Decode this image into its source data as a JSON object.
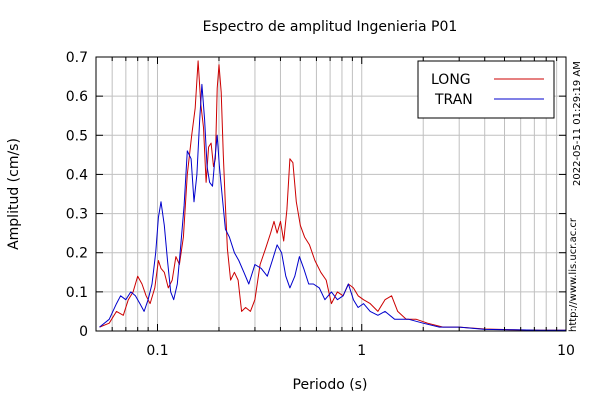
{
  "chart_data": {
    "type": "line",
    "title": "Espectro de amplitud Ingenieria P01",
    "xlabel": "Periodo (s)",
    "ylabel": "Amplitud (cm/s)",
    "xscale": "log",
    "xlim": [
      0.05,
      10
    ],
    "ylim": [
      0,
      0.7
    ],
    "x_ticks": [
      {
        "value": 0.1,
        "label": "0.1"
      },
      {
        "value": 1,
        "label": "1"
      },
      {
        "value": 10,
        "label": "10"
      }
    ],
    "y_ticks": [
      {
        "value": 0,
        "label": "0"
      },
      {
        "value": 0.1,
        "label": "0.1"
      },
      {
        "value": 0.2,
        "label": "0.2"
      },
      {
        "value": 0.3,
        "label": "0.3"
      },
      {
        "value": 0.4,
        "label": "0.4"
      },
      {
        "value": 0.5,
        "label": "0.5"
      },
      {
        "value": 0.6,
        "label": "0.6"
      },
      {
        "value": 0.7,
        "label": "0.7"
      }
    ],
    "grid": true,
    "legend_position": "top-right",
    "series": [
      {
        "name": "LONG",
        "color": "#cc0000",
        "points": [
          [
            0.052,
            0.01
          ],
          [
            0.058,
            0.02
          ],
          [
            0.063,
            0.05
          ],
          [
            0.068,
            0.04
          ],
          [
            0.072,
            0.08
          ],
          [
            0.076,
            0.1
          ],
          [
            0.08,
            0.14
          ],
          [
            0.084,
            0.12
          ],
          [
            0.088,
            0.09
          ],
          [
            0.092,
            0.07
          ],
          [
            0.097,
            0.11
          ],
          [
            0.101,
            0.18
          ],
          [
            0.104,
            0.16
          ],
          [
            0.108,
            0.15
          ],
          [
            0.113,
            0.11
          ],
          [
            0.118,
            0.13
          ],
          [
            0.123,
            0.19
          ],
          [
            0.128,
            0.17
          ],
          [
            0.134,
            0.24
          ],
          [
            0.14,
            0.4
          ],
          [
            0.147,
            0.5
          ],
          [
            0.153,
            0.57
          ],
          [
            0.158,
            0.69
          ],
          [
            0.163,
            0.58
          ],
          [
            0.168,
            0.52
          ],
          [
            0.173,
            0.38
          ],
          [
            0.178,
            0.47
          ],
          [
            0.183,
            0.48
          ],
          [
            0.188,
            0.42
          ],
          [
            0.192,
            0.44
          ],
          [
            0.196,
            0.62
          ],
          [
            0.2,
            0.68
          ],
          [
            0.205,
            0.61
          ],
          [
            0.21,
            0.45
          ],
          [
            0.215,
            0.32
          ],
          [
            0.22,
            0.21
          ],
          [
            0.228,
            0.13
          ],
          [
            0.238,
            0.15
          ],
          [
            0.248,
            0.13
          ],
          [
            0.258,
            0.05
          ],
          [
            0.27,
            0.06
          ],
          [
            0.285,
            0.05
          ],
          [
            0.3,
            0.08
          ],
          [
            0.318,
            0.17
          ],
          [
            0.338,
            0.21
          ],
          [
            0.358,
            0.25
          ],
          [
            0.372,
            0.28
          ],
          [
            0.385,
            0.25
          ],
          [
            0.4,
            0.28
          ],
          [
            0.415,
            0.23
          ],
          [
            0.43,
            0.31
          ],
          [
            0.445,
            0.44
          ],
          [
            0.46,
            0.43
          ],
          [
            0.478,
            0.33
          ],
          [
            0.5,
            0.27
          ],
          [
            0.525,
            0.24
          ],
          [
            0.555,
            0.22
          ],
          [
            0.59,
            0.18
          ],
          [
            0.63,
            0.15
          ],
          [
            0.67,
            0.13
          ],
          [
            0.71,
            0.07
          ],
          [
            0.76,
            0.1
          ],
          [
            0.81,
            0.09
          ],
          [
            0.86,
            0.12
          ],
          [
            0.91,
            0.11
          ],
          [
            0.96,
            0.09
          ],
          [
            1.02,
            0.08
          ],
          [
            1.1,
            0.07
          ],
          [
            1.2,
            0.05
          ],
          [
            1.3,
            0.08
          ],
          [
            1.4,
            0.09
          ],
          [
            1.5,
            0.05
          ],
          [
            1.65,
            0.03
          ],
          [
            1.85,
            0.03
          ],
          [
            2.1,
            0.02
          ],
          [
            2.5,
            0.01
          ],
          [
            3.0,
            0.01
          ],
          [
            4.0,
            0.005
          ],
          [
            5.5,
            0.003
          ],
          [
            7.5,
            0.002
          ],
          [
            10.0,
            0.002
          ]
        ]
      },
      {
        "name": "TRAN",
        "color": "#0000cc",
        "points": [
          [
            0.052,
            0.01
          ],
          [
            0.058,
            0.03
          ],
          [
            0.063,
            0.07
          ],
          [
            0.066,
            0.09
          ],
          [
            0.07,
            0.08
          ],
          [
            0.074,
            0.1
          ],
          [
            0.078,
            0.09
          ],
          [
            0.082,
            0.07
          ],
          [
            0.086,
            0.05
          ],
          [
            0.09,
            0.08
          ],
          [
            0.094,
            0.12
          ],
          [
            0.098,
            0.2
          ],
          [
            0.101,
            0.29
          ],
          [
            0.104,
            0.33
          ],
          [
            0.108,
            0.27
          ],
          [
            0.112,
            0.18
          ],
          [
            0.116,
            0.1
          ],
          [
            0.12,
            0.08
          ],
          [
            0.125,
            0.12
          ],
          [
            0.13,
            0.22
          ],
          [
            0.135,
            0.32
          ],
          [
            0.14,
            0.46
          ],
          [
            0.146,
            0.44
          ],
          [
            0.151,
            0.33
          ],
          [
            0.156,
            0.4
          ],
          [
            0.161,
            0.54
          ],
          [
            0.165,
            0.63
          ],
          [
            0.17,
            0.54
          ],
          [
            0.175,
            0.42
          ],
          [
            0.18,
            0.38
          ],
          [
            0.186,
            0.37
          ],
          [
            0.191,
            0.44
          ],
          [
            0.196,
            0.5
          ],
          [
            0.201,
            0.42
          ],
          [
            0.207,
            0.35
          ],
          [
            0.215,
            0.26
          ],
          [
            0.225,
            0.24
          ],
          [
            0.238,
            0.2
          ],
          [
            0.25,
            0.18
          ],
          [
            0.265,
            0.15
          ],
          [
            0.28,
            0.12
          ],
          [
            0.3,
            0.17
          ],
          [
            0.322,
            0.16
          ],
          [
            0.345,
            0.14
          ],
          [
            0.365,
            0.18
          ],
          [
            0.385,
            0.22
          ],
          [
            0.405,
            0.2
          ],
          [
            0.425,
            0.14
          ],
          [
            0.445,
            0.11
          ],
          [
            0.47,
            0.14
          ],
          [
            0.495,
            0.19
          ],
          [
            0.52,
            0.16
          ],
          [
            0.55,
            0.12
          ],
          [
            0.58,
            0.12
          ],
          [
            0.62,
            0.11
          ],
          [
            0.66,
            0.08
          ],
          [
            0.71,
            0.1
          ],
          [
            0.76,
            0.08
          ],
          [
            0.81,
            0.09
          ],
          [
            0.86,
            0.12
          ],
          [
            0.91,
            0.08
          ],
          [
            0.96,
            0.06
          ],
          [
            1.02,
            0.07
          ],
          [
            1.1,
            0.05
          ],
          [
            1.2,
            0.04
          ],
          [
            1.3,
            0.05
          ],
          [
            1.45,
            0.03
          ],
          [
            1.7,
            0.03
          ],
          [
            2.0,
            0.02
          ],
          [
            2.4,
            0.01
          ],
          [
            3.0,
            0.01
          ],
          [
            4.0,
            0.004
          ],
          [
            5.5,
            0.003
          ],
          [
            7.5,
            0.002
          ],
          [
            10.0,
            0.002
          ]
        ]
      }
    ]
  },
  "side_note_timestamp": "2022-05-11 01:29:19 AM",
  "side_note_url": "http://www.lis.ucr.ac.cr"
}
